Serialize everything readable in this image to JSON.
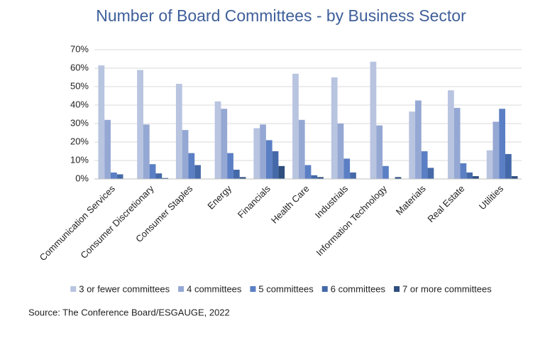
{
  "chart_data": {
    "type": "bar",
    "title": "Number of Board Committees - by Business Sector",
    "source": "Source: The Conference Board/ESGAUGE, 2022",
    "categories": [
      "Communication Services",
      "Consumer Discretionary",
      "Consumer Staples",
      "Energy",
      "Financials",
      "Health Care",
      "Industrials",
      "Information Technology",
      "Materials",
      "Real Estate",
      "Utilities"
    ],
    "series": [
      {
        "name": "3 or fewer committees",
        "color": "#b8c4e0",
        "values": [
          61.5,
          59,
          51.5,
          42,
          27.5,
          57,
          55,
          63.5,
          36.5,
          48,
          15.5
        ]
      },
      {
        "name": "4 committees",
        "color": "#95a8d4",
        "values": [
          32,
          29.5,
          26.5,
          38,
          29.5,
          32,
          30,
          29,
          42.5,
          38.5,
          31
        ]
      },
      {
        "name": "5 committees",
        "color": "#5b7fc4",
        "values": [
          3.5,
          8,
          14,
          14,
          21,
          7.5,
          11,
          7,
          15,
          8.5,
          38
        ]
      },
      {
        "name": "6 committees",
        "color": "#4569a8",
        "values": [
          2.5,
          3,
          7.5,
          5,
          15,
          2,
          3.5,
          0,
          6,
          3.5,
          13.5
        ]
      },
      {
        "name": "7 or more committees",
        "color": "#2f4d7e",
        "values": [
          0,
          0.5,
          0,
          1,
          7,
          1,
          0,
          1,
          0,
          1.5,
          1.5
        ]
      }
    ],
    "ylim": [
      0,
      70
    ],
    "yticks": [
      {
        "value": 0,
        "label": "0%"
      },
      {
        "value": 10,
        "label": "10%"
      },
      {
        "value": 20,
        "label": "20%"
      },
      {
        "value": 30,
        "label": "30%"
      },
      {
        "value": 40,
        "label": "40%"
      },
      {
        "value": 50,
        "label": "50%"
      },
      {
        "value": 60,
        "label": "60%"
      },
      {
        "value": 70,
        "label": "70%"
      }
    ],
    "grid": true
  }
}
